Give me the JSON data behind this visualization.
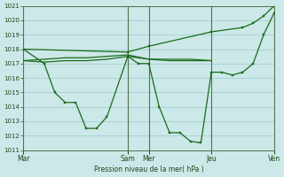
{
  "background_color": "#cce8e8",
  "grid_color": "#99cccc",
  "line_color": "#1a6b1a",
  "marker_color": "#1a6b1a",
  "xlabel": "Pression niveau de la mer( hPa )",
  "ylim": [
    1011,
    1021
  ],
  "yticks": [
    1011,
    1012,
    1013,
    1014,
    1015,
    1016,
    1017,
    1018,
    1019,
    1020,
    1021
  ],
  "day_labels": [
    "Mar",
    "Sam",
    "Mer",
    "Jeu",
    "Ven"
  ],
  "day_positions": [
    0,
    10,
    12,
    18,
    24
  ],
  "xlim": [
    0,
    24
  ],
  "series_deep": {
    "x": [
      0,
      2,
      3,
      4,
      5,
      6,
      7,
      8,
      10,
      11,
      12,
      13,
      14,
      15,
      16,
      17,
      18,
      19,
      20,
      21,
      22,
      23,
      24
    ],
    "y": [
      1018.0,
      1017.0,
      1015.0,
      1014.3,
      1014.3,
      1012.5,
      1012.5,
      1013.3,
      1017.5,
      1017.0,
      1017.0,
      1014.0,
      1012.2,
      1012.2,
      1011.6,
      1011.5,
      1016.4,
      1016.4,
      1016.2,
      1016.4,
      1017.0,
      1019.0,
      1020.5
    ]
  },
  "series_upper": {
    "x": [
      0,
      10,
      12,
      18,
      21,
      22,
      23,
      24
    ],
    "y": [
      1018.0,
      1017.8,
      1018.2,
      1019.2,
      1019.5,
      1019.8,
      1020.3,
      1021.0
    ]
  },
  "series_flat1": {
    "x": [
      0,
      2,
      4,
      6,
      8,
      10,
      12,
      14,
      16,
      18
    ],
    "y": [
      1017.2,
      1017.1,
      1017.2,
      1017.2,
      1017.3,
      1017.5,
      1017.3,
      1017.2,
      1017.2,
      1017.2
    ]
  },
  "series_flat2": {
    "x": [
      0,
      2,
      4,
      6,
      8,
      10,
      12,
      14,
      16,
      18
    ],
    "y": [
      1017.2,
      1017.3,
      1017.4,
      1017.4,
      1017.5,
      1017.6,
      1017.3,
      1017.3,
      1017.3,
      1017.2
    ]
  },
  "series_main_dip": {
    "x": [
      0,
      2,
      3,
      4,
      5,
      6,
      7,
      8,
      10,
      11,
      12,
      13,
      14,
      15,
      16,
      17,
      18,
      19,
      20,
      21,
      22,
      23,
      24
    ],
    "y": [
      1018.0,
      1017.2,
      1015.0,
      1014.3,
      1014.3,
      1012.5,
      1012.5,
      1013.3,
      1017.5,
      1017.0,
      1017.0,
      1014.0,
      1012.2,
      1012.2,
      1011.6,
      1011.5,
      1016.4,
      1016.4,
      1016.2,
      1016.4,
      1017.0,
      1019.0,
      1020.5
    ]
  }
}
